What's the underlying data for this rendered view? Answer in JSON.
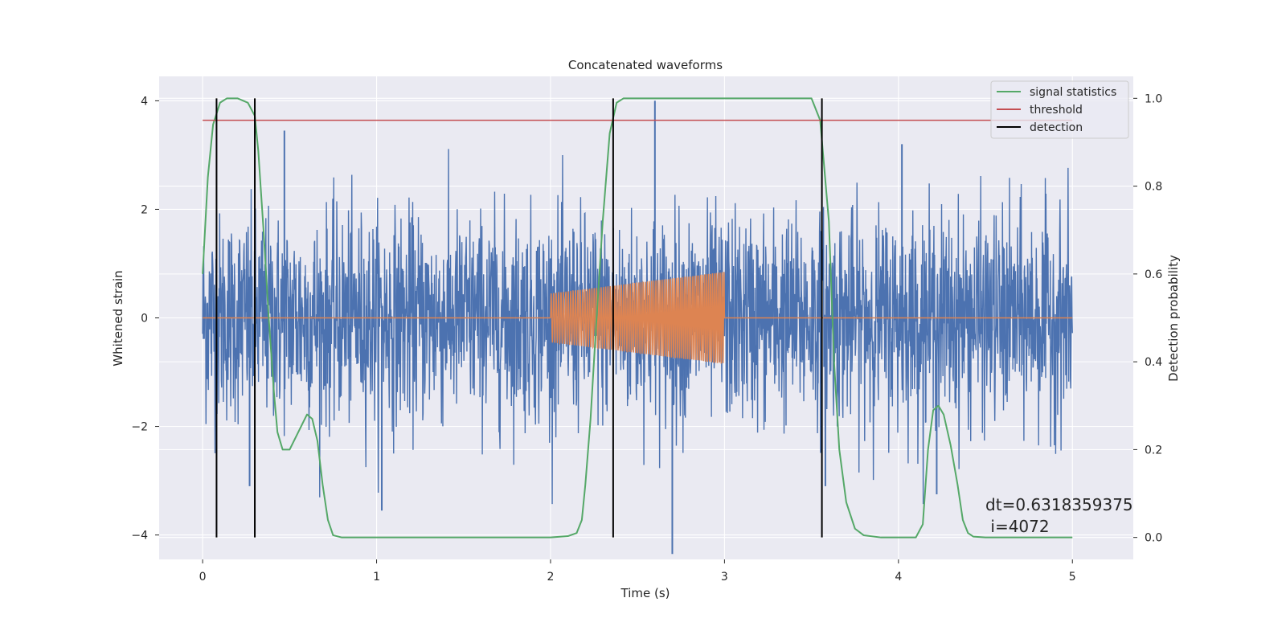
{
  "chart_data": {
    "type": "line",
    "title": "Concatenated waveforms",
    "xlabel": "Time (s)",
    "ylabel_left": "Whitened strain",
    "ylabel_right": "Detection probability",
    "xlim": [
      -0.25,
      5.35
    ],
    "ylim_left": [
      -4.45,
      4.45
    ],
    "ylim_right": [
      -0.05,
      1.05
    ],
    "xticks": [
      0,
      1,
      2,
      3,
      4,
      5
    ],
    "xtick_labels": [
      "0",
      "1",
      "2",
      "3",
      "4",
      "5"
    ],
    "yticks_left": [
      -4,
      -2,
      0,
      2,
      4
    ],
    "ytick_labels_left": [
      "−4",
      "−2",
      "0",
      "2",
      "4"
    ],
    "yticks_right": [
      0.0,
      0.2,
      0.4,
      0.6,
      0.8,
      1.0
    ],
    "ytick_labels_right": [
      "0.0",
      "0.2",
      "0.4",
      "0.6",
      "0.8",
      "1.0"
    ],
    "grid": true,
    "legend_position": "top-right",
    "background": "#eaeaf2",
    "series": [
      {
        "kind": "noise",
        "axis": "left",
        "color": "#4c72b0",
        "x_range": [
          0,
          5
        ],
        "envelope_typical": 1.2,
        "envelope_peak": 3.5,
        "spikes": [
          {
            "x": 2.6,
            "y": 4.0
          },
          {
            "x": 2.7,
            "y": -4.35
          },
          {
            "x": 1.03,
            "y": -3.55
          },
          {
            "x": 0.47,
            "y": 3.45
          },
          {
            "x": 0.27,
            "y": -3.1
          },
          {
            "x": 4.02,
            "y": 3.2
          },
          {
            "x": 4.22,
            "y": -3.25
          },
          {
            "x": 3.58,
            "y": -3.1
          }
        ]
      },
      {
        "kind": "injected-signal",
        "axis": "left",
        "color": "#dd8452",
        "x_range": [
          0,
          5
        ],
        "chirp_x_range": [
          2.0,
          3.0
        ],
        "chirp_amplitude_range": [
          0.45,
          0.85
        ],
        "chirp_cycles": 70
      },
      {
        "name": "signal statistics",
        "axis": "right",
        "color": "#55a868",
        "x": [
          0,
          0.03,
          0.06,
          0.1,
          0.14,
          0.2,
          0.26,
          0.3,
          0.32,
          0.35,
          0.38,
          0.41,
          0.43,
          0.46,
          0.5,
          0.55,
          0.6,
          0.63,
          0.66,
          0.69,
          0.72,
          0.75,
          0.8,
          1.0,
          2.0,
          2.1,
          2.15,
          2.18,
          2.2,
          2.23,
          2.26,
          2.3,
          2.34,
          2.38,
          2.42,
          2.5,
          3.0,
          3.5,
          3.55,
          3.6,
          3.63,
          3.66,
          3.7,
          3.75,
          3.8,
          3.9,
          4.0,
          4.1,
          4.14,
          4.17,
          4.2,
          4.23,
          4.26,
          4.3,
          4.34,
          4.37,
          4.4,
          4.43,
          4.5,
          5.0
        ],
        "y": [
          0.6,
          0.82,
          0.94,
          0.99,
          1.0,
          1.0,
          0.99,
          0.96,
          0.88,
          0.7,
          0.5,
          0.33,
          0.24,
          0.2,
          0.2,
          0.24,
          0.28,
          0.27,
          0.22,
          0.12,
          0.04,
          0.005,
          0.0,
          0.0,
          0.0,
          0.003,
          0.01,
          0.04,
          0.12,
          0.27,
          0.47,
          0.72,
          0.92,
          0.99,
          1.0,
          1.0,
          1.0,
          1.0,
          0.95,
          0.72,
          0.4,
          0.2,
          0.08,
          0.02,
          0.005,
          0.0,
          0.0,
          0.0,
          0.03,
          0.2,
          0.29,
          0.3,
          0.28,
          0.21,
          0.12,
          0.04,
          0.01,
          0.002,
          0.0,
          0.0
        ]
      },
      {
        "name": "threshold",
        "axis": "right",
        "color": "#c44e52",
        "value": 0.95,
        "x_range": [
          0,
          5
        ]
      },
      {
        "name": "detection",
        "axis": "left",
        "color": "#000000",
        "x": [
          0.08,
          0.3,
          2.36,
          3.56
        ]
      }
    ],
    "legend": [
      "signal statistics",
      "threshold",
      "detection"
    ],
    "annotation": {
      "lines": [
        "dt=0.6318359375",
        " i=4072"
      ],
      "x": 4.5,
      "y": -3.55
    }
  }
}
